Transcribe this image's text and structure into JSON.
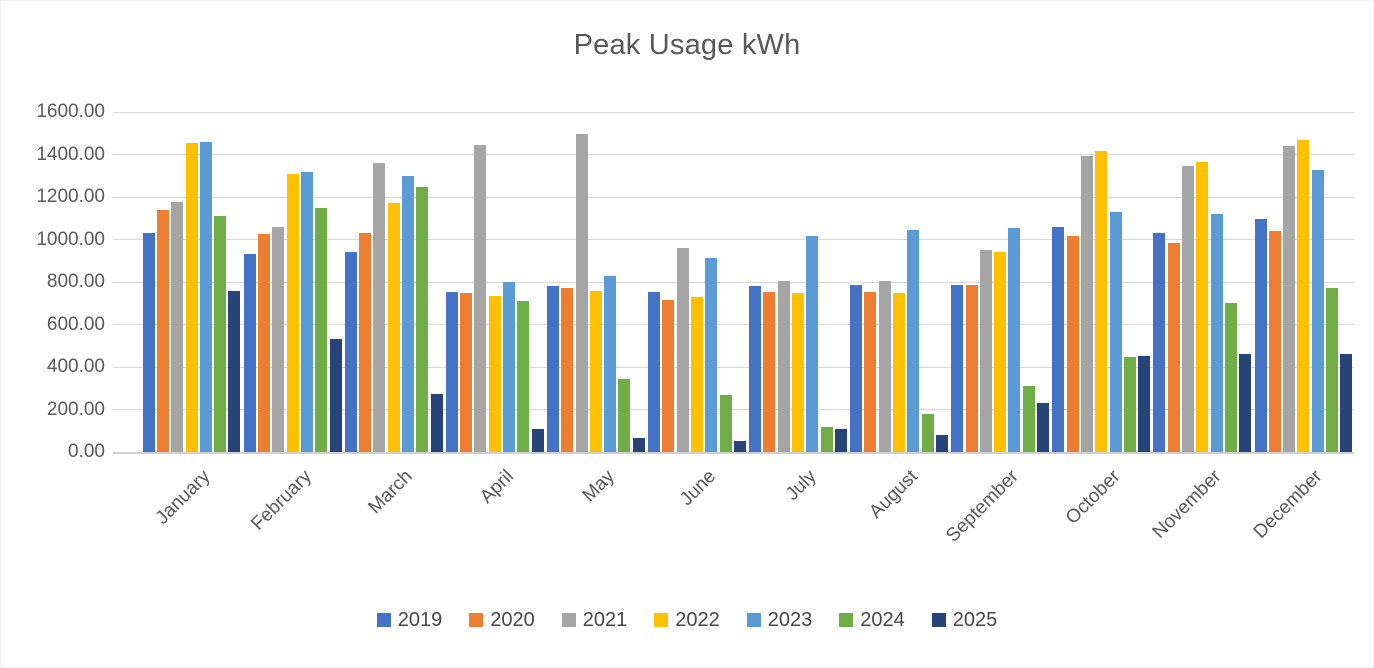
{
  "chart_data": {
    "type": "bar",
    "title": "Peak Usage kWh",
    "categories": [
      "January",
      "February",
      "March",
      "April",
      "May",
      "June",
      "July",
      "August",
      "September",
      "October",
      "November",
      "December"
    ],
    "series": [
      {
        "name": "2019",
        "color": "#4472C4",
        "values": [
          1030,
          930,
          940,
          755,
          780,
          755,
          780,
          785,
          785,
          1060,
          1030,
          1095
        ]
      },
      {
        "name": "2020",
        "color": "#ED7D31",
        "values": [
          1140,
          1025,
          1030,
          750,
          770,
          715,
          755,
          755,
          785,
          1015,
          985,
          1040
        ]
      },
      {
        "name": "2021",
        "color": "#A5A5A5",
        "values": [
          1175,
          1060,
          1360,
          1445,
          1495,
          960,
          805,
          805,
          950,
          1395,
          1345,
          1440
        ]
      },
      {
        "name": "2022",
        "color": "#FFC000",
        "values": [
          1455,
          1310,
          1170,
          735,
          760,
          730,
          750,
          750,
          940,
          1415,
          1365,
          1470
        ]
      },
      {
        "name": "2023",
        "color": "#5B9BD5",
        "values": [
          1460,
          1320,
          1300,
          800,
          830,
          915,
          1015,
          1045,
          1055,
          1130,
          1120,
          1325
        ]
      },
      {
        "name": "2024",
        "color": "#70AD47",
        "values": [
          1110,
          1150,
          1245,
          710,
          345,
          270,
          120,
          180,
          310,
          445,
          700,
          770
        ]
      },
      {
        "name": "2025",
        "color": "#264478",
        "values": [
          760,
          530,
          275,
          110,
          65,
          50,
          110,
          80,
          230,
          450,
          460,
          460
        ]
      }
    ],
    "ylim": [
      0,
      1600
    ],
    "ytick_step": 200,
    "ytick_labels": [
      "0.00",
      "200.00",
      "400.00",
      "600.00",
      "800.00",
      "1000.00",
      "1200.00",
      "1400.00",
      "1600.00"
    ],
    "grid": true,
    "legend_position": "bottom",
    "axis_text_color": "#595959",
    "gridline_color": "#D9D9D9"
  }
}
